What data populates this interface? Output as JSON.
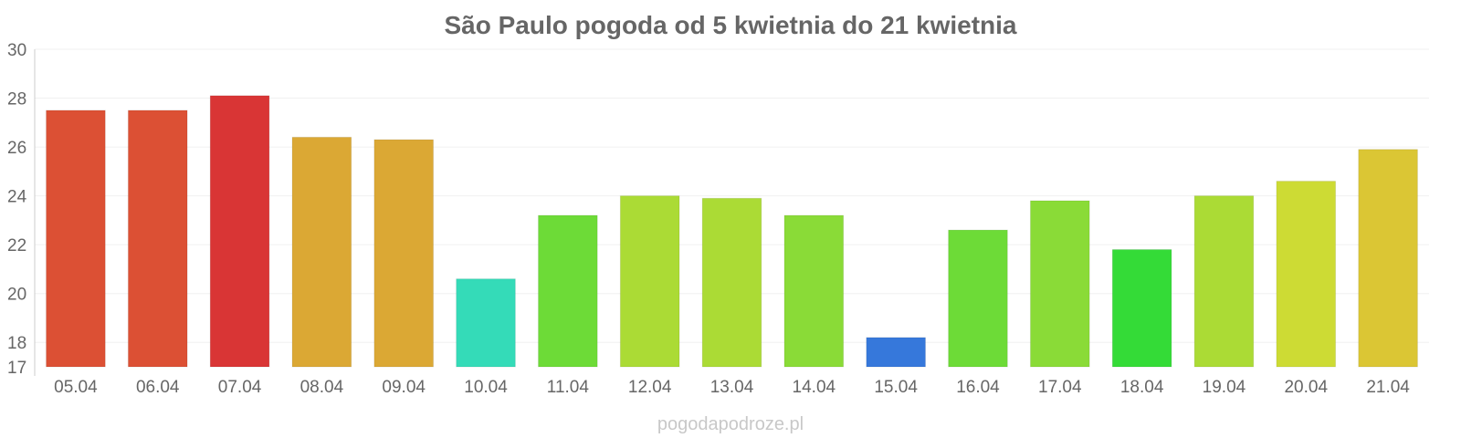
{
  "chart_data": {
    "type": "bar",
    "title": "São Paulo pogoda od 5 kwietnia do 21 kwietnia",
    "xlabel": "",
    "ylabel": "",
    "categories": [
      "05.04",
      "06.04",
      "07.04",
      "08.04",
      "09.04",
      "10.04",
      "11.04",
      "12.04",
      "13.04",
      "14.04",
      "15.04",
      "16.04",
      "17.04",
      "18.04",
      "19.04",
      "20.04",
      "21.04"
    ],
    "values": [
      27.5,
      27.5,
      28.1,
      26.4,
      26.3,
      20.6,
      23.2,
      24.0,
      23.9,
      23.2,
      18.2,
      22.6,
      23.8,
      21.8,
      24.0,
      24.6,
      25.9
    ],
    "colors": [
      "#dc5034",
      "#dc5034",
      "#d93535",
      "#dba834",
      "#dba834",
      "#34dbb8",
      "#6ddb37",
      "#abdb35",
      "#abdb35",
      "#8adb37",
      "#3678db",
      "#6ddb37",
      "#8adb37",
      "#34db37",
      "#abdb35",
      "#cddb34",
      "#dbc634"
    ],
    "ylim": [
      17,
      30
    ],
    "yticks": [
      17,
      18,
      20,
      22,
      24,
      26,
      28,
      30
    ],
    "grid": true,
    "legend": "none"
  },
  "watermark": "pogodapodroze.pl"
}
